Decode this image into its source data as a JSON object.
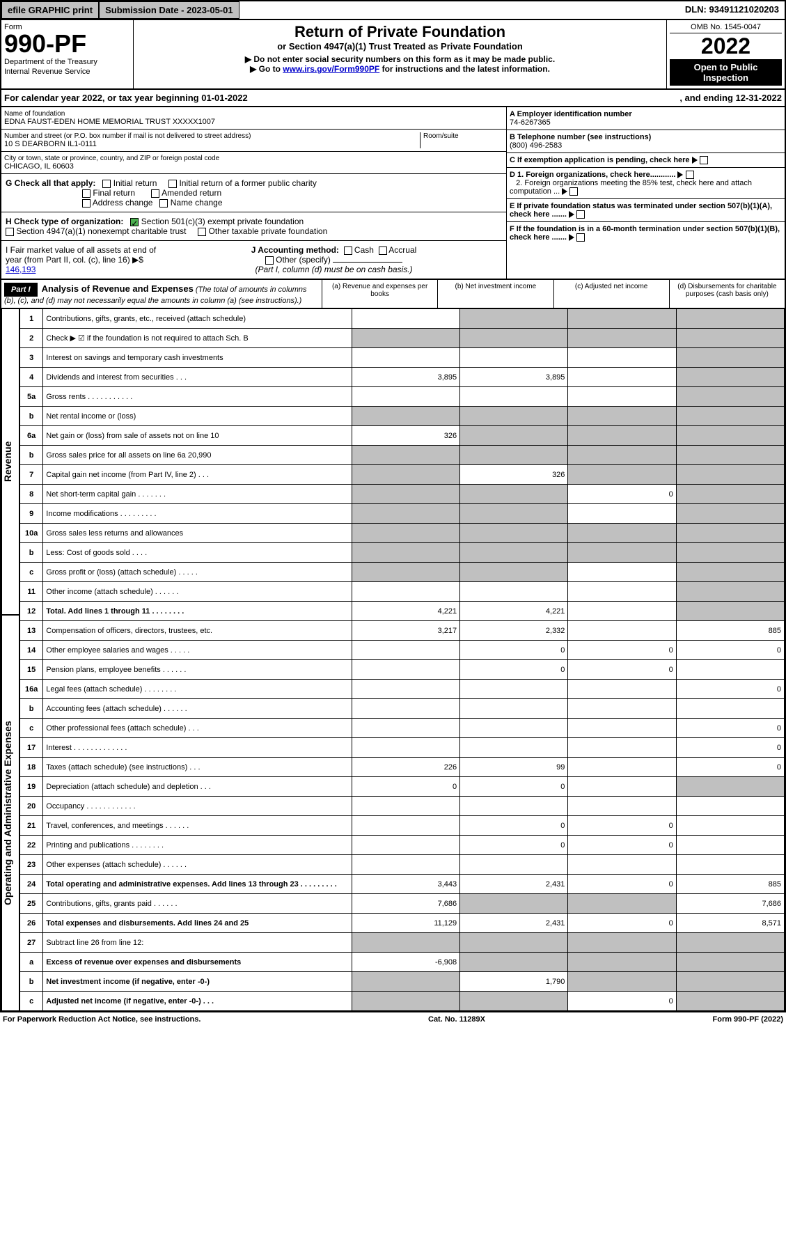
{
  "topbar": {
    "efile": "efile GRAPHIC print",
    "subdate": "Submission Date - 2023-05-01",
    "dln": "DLN: 93491121020203"
  },
  "header": {
    "form": "Form",
    "num": "990-PF",
    "dept": "Department of the Treasury",
    "irs": "Internal Revenue Service",
    "title": "Return of Private Foundation",
    "sub": "or Section 4947(a)(1) Trust Treated as Private Foundation",
    "note1": "▶ Do not enter social security numbers on this form as it may be made public.",
    "note2": "▶ Go to ",
    "link": "www.irs.gov/Form990PF",
    "note3": " for instructions and the latest information.",
    "omb": "OMB No. 1545-0047",
    "year": "2022",
    "open": "Open to Public Inspection"
  },
  "cal": {
    "a": "For calendar year 2022, or tax year beginning 01-01-2022",
    "b": ", and ending 12-31-2022"
  },
  "info": {
    "nameLbl": "Name of foundation",
    "name": "EDNA FAUST-EDEN HOME MEMORIAL TRUST XXXXX1007",
    "addrLbl": "Number and street (or P.O. box number if mail is not delivered to street address)",
    "addr": "10 S DEARBORN IL1-0111",
    "room": "Room/suite",
    "cityLbl": "City or town, state or province, country, and ZIP or foreign postal code",
    "city": "CHICAGO, IL  60603",
    "A": "A Employer identification number",
    "Aval": "74-6267365",
    "B": "B Telephone number (see instructions)",
    "Bval": "(800) 496-2583",
    "C": "C If exemption application is pending, check here",
    "D1": "D 1. Foreign organizations, check here............",
    "D2": "2. Foreign organizations meeting the 85% test, check here and attach computation ...",
    "E": "E  If private foundation status was terminated under section 507(b)(1)(A), check here .......",
    "F": "F  If the foundation is in a 60-month termination under section 507(b)(1)(B), check here ......."
  },
  "G": {
    "lbl": "G Check all that apply:",
    "initial": "Initial return",
    "final": "Final return",
    "addr": "Address change",
    "initialFormer": "Initial return of a former public charity",
    "amended": "Amended return",
    "name": "Name change"
  },
  "H": {
    "lbl": "H Check type of organization:",
    "s501": "Section 501(c)(3) exempt private foundation",
    "s4947": "Section 4947(a)(1) nonexempt charitable trust",
    "other": "Other taxable private foundation"
  },
  "I": {
    "lbl": "I Fair market value of all assets at end of year (from Part II, col. (c), line 16) ▶$",
    "val": "146,193"
  },
  "J": {
    "lbl": "J Accounting method:",
    "cash": "Cash",
    "accrual": "Accrual",
    "other": "Other (specify)",
    "note": "(Part I, column (d) must be on cash basis.)"
  },
  "part1": {
    "lbl": "Part I",
    "title": "Analysis of Revenue and Expenses",
    "note": "(The total of amounts in columns (b), (c), and (d) may not necessarily equal the amounts in column (a) (see instructions).)",
    "colA": "(a)  Revenue and expenses per books",
    "colB": "(b)  Net investment income",
    "colC": "(c)  Adjusted net income",
    "colD": "(d)  Disbursements for charitable purposes (cash basis only)"
  },
  "sideRev": "Revenue",
  "sideExp": "Operating and Administrative Expenses",
  "rows": [
    {
      "n": "1",
      "d": "Contributions, gifts, grants, etc., received (attach schedule)",
      "a": "",
      "b": "s",
      "c": "s",
      "dd": "s"
    },
    {
      "n": "2",
      "d": "Check ▶ ☑ if the foundation is not required to attach Sch. B",
      "dots": true,
      "a": "s",
      "b": "s",
      "c": "s",
      "dd": "s"
    },
    {
      "n": "3",
      "d": "Interest on savings and temporary cash investments",
      "a": "",
      "b": "",
      "c": "",
      "dd": "s"
    },
    {
      "n": "4",
      "d": "Dividends and interest from securities   .   .   .",
      "a": "3,895",
      "b": "3,895",
      "c": "",
      "dd": "s"
    },
    {
      "n": "5a",
      "d": "Gross rents   .   .   .   .   .   .   .   .   .   .   .",
      "a": "",
      "b": "",
      "c": "",
      "dd": "s"
    },
    {
      "n": "b",
      "d": "Net rental income or (loss)",
      "a": "s",
      "b": "s",
      "c": "s",
      "dd": "s"
    },
    {
      "n": "6a",
      "d": "Net gain or (loss) from sale of assets not on line 10",
      "a": "326",
      "b": "s",
      "c": "s",
      "dd": "s"
    },
    {
      "n": "b",
      "d": "Gross sales price for all assets on line 6a                    20,990",
      "a": "s",
      "b": "s",
      "c": "s",
      "dd": "s"
    },
    {
      "n": "7",
      "d": "Capital gain net income (from Part IV, line 2)   .   .   .",
      "a": "s",
      "b": "326",
      "c": "s",
      "dd": "s"
    },
    {
      "n": "8",
      "d": "Net short-term capital gain   .   .   .   .   .   .   .",
      "a": "s",
      "b": "s",
      "c": "0",
      "dd": "s"
    },
    {
      "n": "9",
      "d": "Income modifications   .   .   .   .   .   .   .   .   .",
      "a": "s",
      "b": "s",
      "c": "",
      "dd": "s"
    },
    {
      "n": "10a",
      "d": "Gross sales less returns and allowances",
      "a": "s",
      "b": "s",
      "c": "s",
      "dd": "s"
    },
    {
      "n": "b",
      "d": "Less: Cost of goods sold   .   .   .   .",
      "a": "s",
      "b": "s",
      "c": "s",
      "dd": "s"
    },
    {
      "n": "c",
      "d": "Gross profit or (loss) (attach schedule)   .   .   .   .   .",
      "a": "s",
      "b": "s",
      "c": "",
      "dd": "s"
    },
    {
      "n": "11",
      "d": "Other income (attach schedule)   .   .   .   .   .   .",
      "a": "",
      "b": "",
      "c": "",
      "dd": "s"
    },
    {
      "n": "12",
      "d": "Total. Add lines 1 through 11   .   .   .   .   .   .   .   .",
      "bold": true,
      "a": "4,221",
      "b": "4,221",
      "c": "",
      "dd": "s"
    },
    {
      "n": "13",
      "d": "Compensation of officers, directors, trustees, etc.",
      "a": "3,217",
      "b": "2,332",
      "c": "",
      "dd": "885"
    },
    {
      "n": "14",
      "d": "Other employee salaries and wages   .   .   .   .   .",
      "a": "",
      "b": "0",
      "c": "0",
      "dd": "0"
    },
    {
      "n": "15",
      "d": "Pension plans, employee benefits   .   .   .   .   .   .",
      "a": "",
      "b": "0",
      "c": "0",
      "dd": ""
    },
    {
      "n": "16a",
      "d": "Legal fees (attach schedule)   .   .   .   .   .   .   .   .",
      "a": "",
      "b": "",
      "c": "",
      "dd": "0"
    },
    {
      "n": "b",
      "d": "Accounting fees (attach schedule)   .   .   .   .   .   .",
      "a": "",
      "b": "",
      "c": "",
      "dd": ""
    },
    {
      "n": "c",
      "d": "Other professional fees (attach schedule)   .   .   .",
      "a": "",
      "b": "",
      "c": "",
      "dd": "0"
    },
    {
      "n": "17",
      "d": "Interest   .   .   .   .   .   .   .   .   .   .   .   .   .",
      "a": "",
      "b": "",
      "c": "",
      "dd": "0"
    },
    {
      "n": "18",
      "d": "Taxes (attach schedule) (see instructions)   .   .   .",
      "a": "226",
      "b": "99",
      "c": "",
      "dd": "0"
    },
    {
      "n": "19",
      "d": "Depreciation (attach schedule) and depletion   .   .   .",
      "a": "0",
      "b": "0",
      "c": "",
      "dd": "s"
    },
    {
      "n": "20",
      "d": "Occupancy   .   .   .   .   .   .   .   .   .   .   .   .",
      "a": "",
      "b": "",
      "c": "",
      "dd": ""
    },
    {
      "n": "21",
      "d": "Travel, conferences, and meetings   .   .   .   .   .   .",
      "a": "",
      "b": "0",
      "c": "0",
      "dd": ""
    },
    {
      "n": "22",
      "d": "Printing and publications   .   .   .   .   .   .   .   .",
      "a": "",
      "b": "0",
      "c": "0",
      "dd": ""
    },
    {
      "n": "23",
      "d": "Other expenses (attach schedule)   .   .   .   .   .   .",
      "a": "",
      "b": "",
      "c": "",
      "dd": ""
    },
    {
      "n": "24",
      "d": "Total operating and administrative expenses. Add lines 13 through 23   .   .   .   .   .   .   .   .   .",
      "bold": true,
      "a": "3,443",
      "b": "2,431",
      "c": "0",
      "dd": "885"
    },
    {
      "n": "25",
      "d": "Contributions, gifts, grants paid   .   .   .   .   .   .",
      "a": "7,686",
      "b": "s",
      "c": "s",
      "dd": "7,686"
    },
    {
      "n": "26",
      "d": "Total expenses and disbursements. Add lines 24 and 25",
      "bold": true,
      "a": "11,129",
      "b": "2,431",
      "c": "0",
      "dd": "8,571"
    },
    {
      "n": "27",
      "d": "Subtract line 26 from line 12:",
      "a": "s",
      "b": "s",
      "c": "s",
      "dd": "s"
    },
    {
      "n": "a",
      "d": "Excess of revenue over expenses and disbursements",
      "bold": true,
      "a": "-6,908",
      "b": "s",
      "c": "s",
      "dd": "s"
    },
    {
      "n": "b",
      "d": "Net investment income (if negative, enter -0-)",
      "bold": true,
      "a": "s",
      "b": "1,790",
      "c": "s",
      "dd": "s"
    },
    {
      "n": "c",
      "d": "Adjusted net income (if negative, enter -0-)   .   .   .",
      "bold": true,
      "a": "s",
      "b": "s",
      "c": "0",
      "dd": "s"
    }
  ],
  "footer": {
    "a": "For Paperwork Reduction Act Notice, see instructions.",
    "b": "Cat. No. 11289X",
    "c": "Form 990-PF (2022)"
  }
}
